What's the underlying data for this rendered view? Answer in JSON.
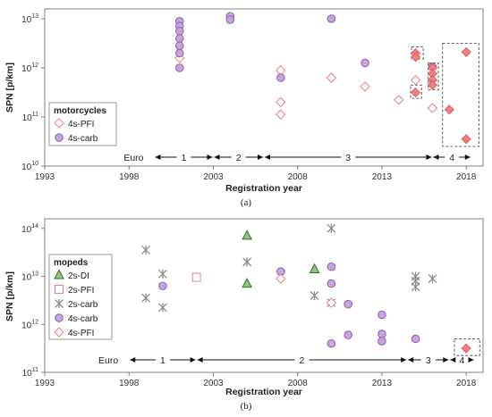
{
  "colors": {
    "pfi": "#ef7f7f",
    "carb_fill": "#c9a3e0",
    "carb_stroke": "#8a63a8",
    "di_fill": "#8fc87a",
    "di_stroke": "#2f6b2a",
    "cross": "#8c8c8c",
    "frame": "#808080"
  },
  "chart_data": [
    {
      "type": "scatter",
      "panel": "a",
      "caption": "(a)",
      "ylabel": "SPN [p/km]",
      "xlabel": "Registration year",
      "x_ticks": [
        "1993",
        "1998",
        "2003",
        "2008",
        "2013",
        "2018"
      ],
      "xlim": [
        1993,
        2019
      ],
      "y_ticks": [
        {
          "base": "10",
          "exp": "10"
        },
        {
          "base": "10",
          "exp": "11"
        },
        {
          "base": "10",
          "exp": "12"
        },
        {
          "base": "10",
          "exp": "13"
        }
      ],
      "ylim": [
        10,
        13.2
      ],
      "y_scale": "log",
      "grid": false,
      "legend": {
        "title": "motorcycles",
        "position": "bottom-left",
        "entries": [
          {
            "label": "4s-PFI",
            "marker": "diamond-open"
          },
          {
            "label": "4s-carb",
            "marker": "circle"
          }
        ]
      },
      "series": [
        {
          "name": "4s-PFI",
          "marker": "diamond-open",
          "points": [
            [
              2001,
              12.2
            ],
            [
              2007,
              11.95
            ],
            [
              2007,
              11.3
            ],
            [
              2007,
              11.05
            ],
            [
              2010,
              11.8
            ],
            [
              2012,
              11.62
            ],
            [
              2014,
              11.35
            ],
            [
              2015,
              11.75
            ],
            [
              2016,
              11.18
            ]
          ]
        },
        {
          "name": "4s-carb",
          "marker": "circle",
          "points": [
            [
              2001,
              12.95
            ],
            [
              2001,
              12.85
            ],
            [
              2001,
              12.75
            ],
            [
              2001,
              12.6
            ],
            [
              2001,
              12.45
            ],
            [
              2001,
              12.3
            ],
            [
              2001,
              12.0
            ],
            [
              2004,
              13.05
            ],
            [
              2004,
              12.98
            ],
            [
              2007,
              11.8
            ],
            [
              2010,
              13.0
            ],
            [
              2012,
              12.1
            ],
            [
              2016,
              12.02
            ]
          ]
        },
        {
          "name": "highlighted",
          "marker": "diamond-filled",
          "points": [
            [
              2015,
              12.3
            ],
            [
              2015,
              12.22
            ],
            [
              2015,
              11.5
            ],
            [
              2016,
              12.0
            ],
            [
              2016,
              11.88
            ],
            [
              2016,
              11.75
            ],
            [
              2016,
              11.65
            ],
            [
              2017,
              11.15
            ],
            [
              2018,
              12.32
            ],
            [
              2018,
              10.55
            ]
          ]
        }
      ],
      "euro_stages": {
        "label": "Euro",
        "stages": [
          {
            "label": "1",
            "from": 1999.5,
            "to": 2003
          },
          {
            "label": "2",
            "from": 2003,
            "to": 2006
          },
          {
            "label": "3",
            "from": 2006,
            "to": 2016
          },
          {
            "label": "4",
            "from": 2016,
            "to": 2018.3
          }
        ]
      }
    },
    {
      "type": "scatter",
      "panel": "b",
      "caption": "(b)",
      "ylabel": "SPN [p/km]",
      "xlabel": "Registration year",
      "x_ticks": [
        "1993",
        "1998",
        "2003",
        "2008",
        "2013",
        "2018"
      ],
      "xlim": [
        1993,
        2019
      ],
      "y_ticks": [
        {
          "base": "10",
          "exp": "11"
        },
        {
          "base": "10",
          "exp": "12"
        },
        {
          "base": "10",
          "exp": "13"
        },
        {
          "base": "10",
          "exp": "14"
        }
      ],
      "ylim": [
        11,
        14.2
      ],
      "y_scale": "log",
      "grid": false,
      "legend": {
        "title": "mopeds",
        "position": "bottom-left",
        "entries": [
          {
            "label": "2s-DI",
            "marker": "triangle"
          },
          {
            "label": "2s-PFI",
            "marker": "square-open"
          },
          {
            "label": "2s-carb",
            "marker": "asterisk"
          },
          {
            "label": "4s-carb",
            "marker": "circle"
          },
          {
            "label": "4s-PFI",
            "marker": "diamond-open"
          }
        ]
      },
      "series": [
        {
          "name": "2s-DI",
          "marker": "triangle",
          "points": [
            [
              2005,
              13.85
            ],
            [
              2005,
              12.85
            ],
            [
              2009,
              13.15
            ]
          ]
        },
        {
          "name": "2s-PFI",
          "marker": "square-open",
          "points": [
            [
              2002,
              12.98
            ]
          ]
        },
        {
          "name": "2s-carb",
          "marker": "asterisk",
          "points": [
            [
              1999,
              13.55
            ],
            [
              1999,
              12.55
            ],
            [
              2000,
              13.05
            ],
            [
              2000,
              12.35
            ],
            [
              2005,
              13.3
            ],
            [
              2009,
              12.6
            ],
            [
              2010,
              14.0
            ],
            [
              2010,
              12.45
            ],
            [
              2015,
              13.0
            ],
            [
              2015,
              12.9
            ],
            [
              2015,
              12.78
            ],
            [
              2016,
              12.95
            ]
          ]
        },
        {
          "name": "4s-carb",
          "marker": "circle",
          "points": [
            [
              2000,
              12.8
            ],
            [
              2007,
              13.1
            ],
            [
              2010,
              13.2
            ],
            [
              2010,
              12.85
            ],
            [
              2010,
              11.6
            ],
            [
              2011,
              12.42
            ],
            [
              2011,
              11.78
            ],
            [
              2013,
              12.2
            ],
            [
              2013,
              11.8
            ],
            [
              2013,
              11.65
            ],
            [
              2015,
              11.7
            ]
          ]
        },
        {
          "name": "4s-PFI",
          "marker": "diamond-open",
          "points": [
            [
              2007,
              12.95
            ],
            [
              2010,
              12.45
            ]
          ]
        },
        {
          "name": "highlighted",
          "marker": "diamond-filled",
          "points": [
            [
              2018,
              11.5
            ]
          ]
        }
      ],
      "euro_stages": {
        "label": "Euro",
        "stages": [
          {
            "label": "1",
            "from": 1998,
            "to": 2002
          },
          {
            "label": "2",
            "from": 2002,
            "to": 2014.5
          },
          {
            "label": "3",
            "from": 2014.5,
            "to": 2017
          },
          {
            "label": "4",
            "from": 2017,
            "to": 2018.5
          }
        ]
      }
    }
  ]
}
